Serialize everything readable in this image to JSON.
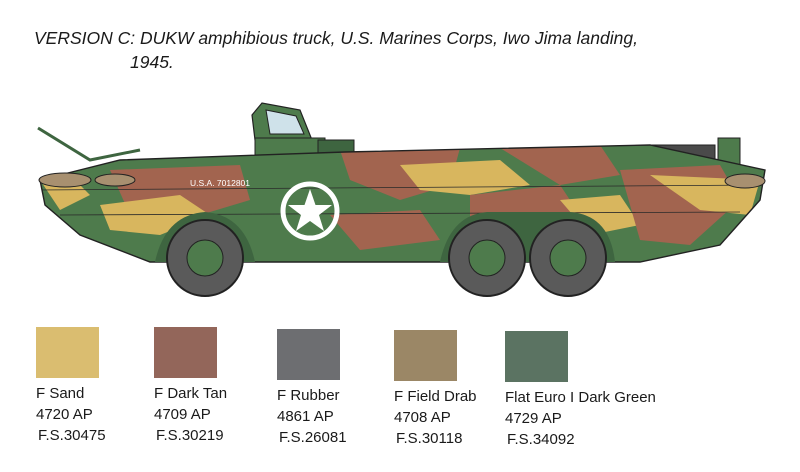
{
  "title": {
    "line1": "VERSION C: DUKW amphibious truck, U.S. Marines Corps, Iwo Jima landing,",
    "line2": "1945."
  },
  "vehicle": {
    "serial_marking": "U.S.A. 7012801",
    "insignia": "star-in-circle",
    "camo_colors": {
      "green": "#4e7b4c",
      "brown": "#a2644f",
      "sand": "#d8b65e"
    }
  },
  "swatches": [
    {
      "name": "F Sand",
      "code": "4720 AP",
      "fs": "F.S.30475",
      "color": "#dabd70"
    },
    {
      "name": "F Dark Tan",
      "code": "4709 AP",
      "fs": "F.S.30219",
      "color": "#93665a"
    },
    {
      "name": "F Rubber",
      "code": "4861 AP",
      "fs": "F.S.26081",
      "color": "#6d6e71"
    },
    {
      "name": "F Field Drab",
      "code": "4708 AP",
      "fs": "F.S.30118",
      "color": "#9b8766"
    },
    {
      "name": "Flat Euro I Dark Green",
      "code": "4729 AP",
      "fs": "F.S.34092",
      "color": "#5b7362"
    }
  ]
}
